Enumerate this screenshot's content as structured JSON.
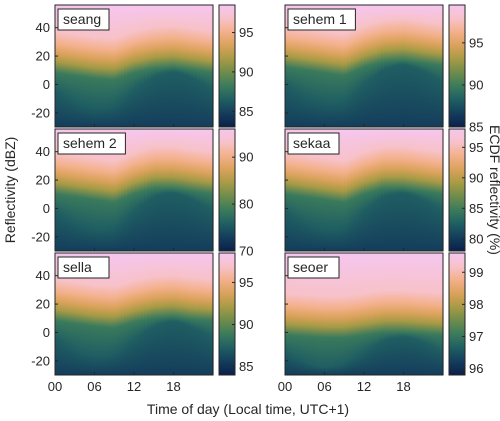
{
  "figure": {
    "xlabel": "Time of day (Local time, UTC+1)",
    "ylabel": "Reflectivity (dBZ)",
    "colorbar_label": "ECDF reflectivity (%)"
  },
  "palette": [
    "#0b1f4a",
    "#143d5c",
    "#1f5e62",
    "#3a7a5c",
    "#6d8c4c",
    "#a69a45",
    "#d9a25a",
    "#f3b08a",
    "#f7c2c9",
    "#f6c6f0"
  ],
  "chart_data": [
    {
      "type": "heatmap",
      "title": "seang",
      "x_ticks": [
        "00",
        "06",
        "12",
        "18"
      ],
      "x_tick_values": [
        0,
        6,
        12,
        18
      ],
      "xlim": [
        0,
        24
      ],
      "y_ticks": [
        -20,
        0,
        20,
        40
      ],
      "ylim": [
        -30,
        56
      ],
      "colorbar": {
        "min": 83,
        "max": 98.5,
        "ticks": [
          85,
          90,
          95
        ]
      },
      "profile": {
        "hours": [
          0,
          3,
          6,
          9,
          12,
          15,
          18,
          21,
          24
        ],
        "transition_dbz": [
          22,
          20,
          18,
          17,
          22,
          25,
          26,
          24,
          22
        ]
      }
    },
    {
      "type": "heatmap",
      "title": "sehem 1",
      "x_ticks": [
        "00",
        "06",
        "12",
        "18"
      ],
      "x_tick_values": [
        0,
        6,
        12,
        18
      ],
      "xlim": [
        0,
        24
      ],
      "y_ticks": [
        -20,
        0,
        20,
        40
      ],
      "ylim": [
        -30,
        56
      ],
      "colorbar": {
        "min": 85,
        "max": 99.5,
        "ticks": [
          85,
          90,
          95
        ]
      },
      "profile": {
        "hours": [
          0,
          3,
          6,
          9,
          12,
          15,
          18,
          21,
          24
        ],
        "transition_dbz": [
          26,
          24,
          22,
          20,
          26,
          30,
          31,
          29,
          27
        ]
      }
    },
    {
      "type": "heatmap",
      "title": "sehem 2",
      "x_ticks": [
        "00",
        "06",
        "12",
        "18"
      ],
      "x_tick_values": [
        0,
        6,
        12,
        18
      ],
      "xlim": [
        0,
        24
      ],
      "y_ticks": [
        -20,
        0,
        20,
        40
      ],
      "ylim": [
        -30,
        56
      ],
      "colorbar": {
        "min": 70,
        "max": 96,
        "ticks": [
          70,
          80,
          90
        ]
      },
      "profile": {
        "hours": [
          0,
          3,
          6,
          9,
          12,
          15,
          18,
          21,
          24
        ],
        "transition_dbz": [
          24,
          22,
          20,
          18,
          24,
          28,
          28,
          26,
          24
        ]
      }
    },
    {
      "type": "heatmap",
      "title": "sekaa",
      "x_ticks": [
        "00",
        "06",
        "12",
        "18"
      ],
      "x_tick_values": [
        0,
        6,
        12,
        18
      ],
      "xlim": [
        0,
        24
      ],
      "y_ticks": [
        -20,
        0,
        20,
        40
      ],
      "ylim": [
        -30,
        56
      ],
      "colorbar": {
        "min": 78,
        "max": 98,
        "ticks": [
          80,
          85,
          90,
          95
        ]
      },
      "profile": {
        "hours": [
          0,
          3,
          6,
          9,
          12,
          15,
          18,
          21,
          24
        ],
        "transition_dbz": [
          24,
          22,
          20,
          18,
          24,
          28,
          28,
          26,
          24
        ]
      }
    },
    {
      "type": "heatmap",
      "title": "sella",
      "x_ticks": [
        "00",
        "06",
        "12",
        "18"
      ],
      "x_tick_values": [
        0,
        6,
        12,
        18
      ],
      "xlim": [
        0,
        24
      ],
      "y_ticks": [
        -20,
        0,
        20,
        40
      ],
      "ylim": [
        -30,
        56
      ],
      "colorbar": {
        "min": 84,
        "max": 98.5,
        "ticks": [
          85,
          90,
          95
        ]
      },
      "profile": {
        "hours": [
          0,
          3,
          6,
          9,
          12,
          15,
          18,
          21,
          24
        ],
        "transition_dbz": [
          22,
          20,
          18,
          17,
          21,
          24,
          25,
          23,
          22
        ]
      }
    },
    {
      "type": "heatmap",
      "title": "seoer",
      "x_ticks": [
        "00",
        "06",
        "12",
        "18"
      ],
      "x_tick_values": [
        0,
        6,
        12,
        18
      ],
      "xlim": [
        0,
        24
      ],
      "y_ticks": [
        -20,
        0,
        20,
        40
      ],
      "ylim": [
        -30,
        56
      ],
      "colorbar": {
        "min": 95.8,
        "max": 99.6,
        "ticks": [
          96,
          97,
          98,
          99
        ]
      },
      "profile": {
        "hours": [
          0,
          3,
          6,
          9,
          12,
          15,
          18,
          21,
          24
        ],
        "transition_dbz": [
          12,
          11,
          10,
          10,
          12,
          14,
          14,
          13,
          12
        ]
      }
    }
  ]
}
